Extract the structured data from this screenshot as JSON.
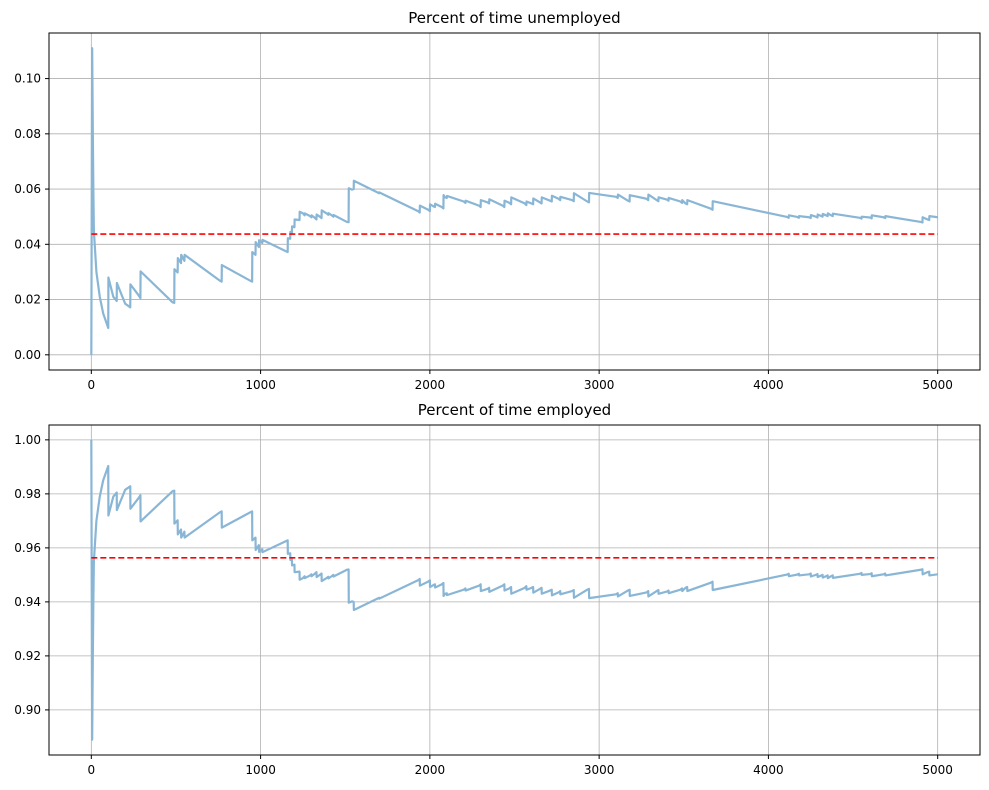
{
  "chart_data": [
    {
      "type": "line",
      "title": "Percent of time unemployed",
      "xlabel": "",
      "ylabel": "",
      "xlim": [
        -250,
        5250
      ],
      "ylim": [
        -0.0055,
        0.1165
      ],
      "xticks": [
        0,
        1000,
        2000,
        3000,
        4000,
        5000
      ],
      "xtick_labels": [
        "0",
        "1000",
        "2000",
        "3000",
        "4000",
        "5000"
      ],
      "yticks": [
        0.0,
        0.02,
        0.04,
        0.06,
        0.08,
        0.1
      ],
      "ytick_labels": [
        "0.00",
        "0.02",
        "0.04",
        "0.06",
        "0.08",
        "0.10"
      ],
      "grid": true,
      "series": [
        {
          "style": "solid",
          "color": "#8ab6d6",
          "x": [
            0,
            5,
            9,
            12,
            15,
            30,
            50,
            70,
            100,
            101,
            130,
            150,
            151,
            200,
            230,
            231,
            280,
            290,
            291,
            480,
            490,
            491,
            510,
            511,
            530,
            531,
            550,
            551,
            760,
            770,
            771,
            940,
            950,
            951,
            970,
            971,
            990,
            991,
            1010,
            1011,
            1150,
            1160,
            1161,
            1175,
            1176,
            1185,
            1186,
            1200,
            1201,
            1230,
            1231,
            1250,
            1260,
            1261,
            1290,
            1300,
            1301,
            1320,
            1330,
            1331,
            1350,
            1360,
            1361,
            1390,
            1400,
            1401,
            1420,
            1430,
            1431,
            1510,
            1520,
            1521,
            1540,
            1550,
            1551,
            1690,
            1700,
            1701,
            1930,
            1940,
            1941,
            1990,
            2000,
            2001,
            2020,
            2030,
            2031,
            2070,
            2080,
            2081,
            2090,
            2100,
            2101,
            2200,
            2210,
            2211,
            2290,
            2300,
            2301,
            2340,
            2350,
            2351,
            2430,
            2440,
            2441,
            2470,
            2480,
            2481,
            2560,
            2570,
            2571,
            2600,
            2610,
            2611,
            2650,
            2660,
            2661,
            2710,
            2720,
            2721,
            2760,
            2770,
            2771,
            2840,
            2850,
            2851,
            2930,
            2940,
            2941,
            3100,
            3110,
            3111,
            3170,
            3180,
            3181,
            3280,
            3290,
            3291,
            3340,
            3350,
            3351,
            3400,
            3410,
            3411,
            3480,
            3490,
            3491,
            3510,
            3520,
            3521,
            3660,
            3670,
            3671,
            4110,
            4120,
            4121,
            4170,
            4180,
            4181,
            4240,
            4250,
            4251,
            4280,
            4290,
            4291,
            4310,
            4320,
            4321,
            4340,
            4350,
            4351,
            4370,
            4380,
            4381,
            4540,
            4550,
            4551,
            4600,
            4610,
            4611,
            4680,
            4690,
            4691,
            4900,
            4910,
            4911,
            4940,
            4950,
            4951,
            5000
          ],
          "y": [
            0,
            0.111,
            0.08,
            0.06,
            0.045,
            0.03,
            0.021,
            0.015,
            0.0097,
            0.028,
            0.021,
            0.0195,
            0.026,
            0.0185,
            0.0172,
            0.0255,
            0.0215,
            0.0205,
            0.0302,
            0.019,
            0.0188,
            0.031,
            0.0298,
            0.035,
            0.0332,
            0.0362,
            0.034,
            0.0362,
            0.0268,
            0.0265,
            0.0325,
            0.0268,
            0.0265,
            0.0372,
            0.0362,
            0.0408,
            0.039,
            0.0415,
            0.0405,
            0.0416,
            0.0375,
            0.0372,
            0.0422,
            0.042,
            0.0445,
            0.0442,
            0.0465,
            0.0462,
            0.049,
            0.0488,
            0.0518,
            0.0512,
            0.0505,
            0.0512,
            0.0503,
            0.0498,
            0.0505,
            0.0496,
            0.049,
            0.0508,
            0.05,
            0.0495,
            0.0523,
            0.0512,
            0.0507,
            0.0513,
            0.0505,
            0.05,
            0.0506,
            0.0481,
            0.048,
            0.0603,
            0.0598,
            0.06,
            0.063,
            0.0588,
            0.0585,
            0.0588,
            0.052,
            0.0515,
            0.054,
            0.0525,
            0.052,
            0.0545,
            0.0538,
            0.0535,
            0.0547,
            0.0535,
            0.053,
            0.0578,
            0.057,
            0.0568,
            0.0575,
            0.0555,
            0.055,
            0.0558,
            0.054,
            0.0535,
            0.056,
            0.0552,
            0.0548,
            0.0563,
            0.054,
            0.0535,
            0.0558,
            0.055,
            0.0545,
            0.057,
            0.0548,
            0.0542,
            0.0555,
            0.0548,
            0.0545,
            0.0566,
            0.0552,
            0.0548,
            0.057,
            0.0558,
            0.0555,
            0.0576,
            0.0565,
            0.056,
            0.0572,
            0.056,
            0.0556,
            0.0585,
            0.0555,
            0.0552,
            0.0586,
            0.0572,
            0.0568,
            0.058,
            0.0558,
            0.0555,
            0.0578,
            0.0565,
            0.056,
            0.058,
            0.056,
            0.0556,
            0.057,
            0.0562,
            0.0558,
            0.0568,
            0.0555,
            0.055,
            0.056,
            0.0548,
            0.0545,
            0.056,
            0.0529,
            0.0525,
            0.0556,
            0.0499,
            0.0496,
            0.0505,
            0.0499,
            0.0496,
            0.0502,
            0.0498,
            0.0495,
            0.0506,
            0.05,
            0.0497,
            0.0508,
            0.0503,
            0.05,
            0.051,
            0.0505,
            0.0502,
            0.0512,
            0.0505,
            0.0502,
            0.0511,
            0.0496,
            0.0493,
            0.05,
            0.0497,
            0.0494,
            0.0505,
            0.0498,
            0.0495,
            0.0502,
            0.0481,
            0.0479,
            0.0498,
            0.049,
            0.0488,
            0.0502,
            0.0498
          ]
        },
        {
          "style": "dashed",
          "color": "#ff0000",
          "x": [
            0,
            5000
          ],
          "y": [
            0.0437,
            0.0437
          ]
        }
      ]
    },
    {
      "type": "line",
      "title": "Percent of time employed",
      "xlabel": "",
      "ylabel": "",
      "xlim": [
        -250,
        5250
      ],
      "ylim": [
        0.8833,
        1.0055
      ],
      "xticks": [
        0,
        1000,
        2000,
        3000,
        4000,
        5000
      ],
      "xtick_labels": [
        "0",
        "1000",
        "2000",
        "3000",
        "4000",
        "5000"
      ],
      "yticks": [
        0.9,
        0.92,
        0.94,
        0.96,
        0.98,
        1.0
      ],
      "ytick_labels": [
        "0.90",
        "0.92",
        "0.94",
        "0.96",
        "0.98",
        "1.00"
      ],
      "grid": true,
      "series": [
        {
          "style": "solid",
          "color": "#8ab6d6",
          "x": [
            0,
            5,
            9,
            12,
            15,
            30,
            50,
            70,
            100,
            101,
            130,
            150,
            151,
            200,
            230,
            231,
            280,
            290,
            291,
            480,
            490,
            491,
            510,
            511,
            530,
            531,
            550,
            551,
            760,
            770,
            771,
            940,
            950,
            951,
            970,
            971,
            990,
            991,
            1010,
            1011,
            1150,
            1160,
            1161,
            1175,
            1176,
            1185,
            1186,
            1200,
            1201,
            1230,
            1231,
            1250,
            1260,
            1261,
            1290,
            1300,
            1301,
            1320,
            1330,
            1331,
            1350,
            1360,
            1361,
            1390,
            1400,
            1401,
            1420,
            1430,
            1431,
            1510,
            1520,
            1521,
            1540,
            1550,
            1551,
            1690,
            1700,
            1701,
            1930,
            1940,
            1941,
            1990,
            2000,
            2001,
            2020,
            2030,
            2031,
            2070,
            2080,
            2081,
            2090,
            2100,
            2101,
            2200,
            2210,
            2211,
            2290,
            2300,
            2301,
            2340,
            2350,
            2351,
            2430,
            2440,
            2441,
            2470,
            2480,
            2481,
            2560,
            2570,
            2571,
            2600,
            2610,
            2611,
            2650,
            2660,
            2661,
            2710,
            2720,
            2721,
            2760,
            2770,
            2771,
            2840,
            2850,
            2851,
            2930,
            2940,
            2941,
            3100,
            3110,
            3111,
            3170,
            3180,
            3181,
            3280,
            3290,
            3291,
            3340,
            3350,
            3351,
            3400,
            3410,
            3411,
            3480,
            3490,
            3491,
            3510,
            3520,
            3521,
            3660,
            3670,
            3671,
            4110,
            4120,
            4121,
            4170,
            4180,
            4181,
            4240,
            4250,
            4251,
            4280,
            4290,
            4291,
            4310,
            4320,
            4321,
            4340,
            4350,
            4351,
            4370,
            4380,
            4381,
            4540,
            4550,
            4551,
            4600,
            4610,
            4611,
            4680,
            4690,
            4691,
            4900,
            4910,
            4911,
            4940,
            4950,
            4951,
            5000
          ],
          "y": [
            1.0,
            0.889,
            0.92,
            0.94,
            0.955,
            0.97,
            0.979,
            0.985,
            0.9903,
            0.972,
            0.979,
            0.9805,
            0.974,
            0.9815,
            0.9828,
            0.9745,
            0.9785,
            0.9795,
            0.9698,
            0.981,
            0.9812,
            0.969,
            0.9702,
            0.965,
            0.9668,
            0.9638,
            0.966,
            0.9638,
            0.9732,
            0.9735,
            0.9675,
            0.9732,
            0.9735,
            0.9628,
            0.9638,
            0.9592,
            0.961,
            0.9585,
            0.9595,
            0.9584,
            0.9625,
            0.9628,
            0.9578,
            0.958,
            0.9555,
            0.9558,
            0.9535,
            0.9538,
            0.951,
            0.9512,
            0.9482,
            0.9488,
            0.9495,
            0.9488,
            0.9497,
            0.9502,
            0.9495,
            0.9504,
            0.951,
            0.9492,
            0.95,
            0.9505,
            0.9477,
            0.9488,
            0.9493,
            0.9487,
            0.9495,
            0.95,
            0.9494,
            0.9519,
            0.952,
            0.9397,
            0.9402,
            0.94,
            0.937,
            0.9412,
            0.9415,
            0.9412,
            0.948,
            0.9485,
            0.946,
            0.9475,
            0.948,
            0.9455,
            0.9462,
            0.9465,
            0.9453,
            0.9465,
            0.947,
            0.9422,
            0.943,
            0.9432,
            0.9425,
            0.9445,
            0.945,
            0.9442,
            0.946,
            0.9465,
            0.944,
            0.9448,
            0.9452,
            0.9437,
            0.946,
            0.9465,
            0.9442,
            0.945,
            0.9455,
            0.943,
            0.9452,
            0.9458,
            0.9445,
            0.9452,
            0.9455,
            0.9434,
            0.9448,
            0.9452,
            0.943,
            0.9442,
            0.9445,
            0.9424,
            0.9435,
            0.944,
            0.9428,
            0.944,
            0.9444,
            0.9415,
            0.9445,
            0.9448,
            0.9414,
            0.9428,
            0.9432,
            0.942,
            0.9442,
            0.9445,
            0.9422,
            0.9435,
            0.944,
            0.942,
            0.944,
            0.9444,
            0.943,
            0.9438,
            0.9442,
            0.9432,
            0.9445,
            0.945,
            0.944,
            0.9452,
            0.9455,
            0.944,
            0.9471,
            0.9475,
            0.9444,
            0.9501,
            0.9504,
            0.9495,
            0.9501,
            0.9504,
            0.9498,
            0.9502,
            0.9505,
            0.9494,
            0.95,
            0.9503,
            0.9492,
            0.9497,
            0.95,
            0.949,
            0.9495,
            0.9498,
            0.9488,
            0.9495,
            0.9498,
            0.9489,
            0.9504,
            0.9507,
            0.95,
            0.9503,
            0.9506,
            0.9495,
            0.9502,
            0.9505,
            0.9498,
            0.9519,
            0.9521,
            0.9502,
            0.951,
            0.9512,
            0.9498,
            0.9502
          ]
        },
        {
          "style": "dashed",
          "color": "#ff0000",
          "x": [
            0,
            5000
          ],
          "y": [
            0.9563,
            0.9563
          ]
        }
      ]
    }
  ]
}
